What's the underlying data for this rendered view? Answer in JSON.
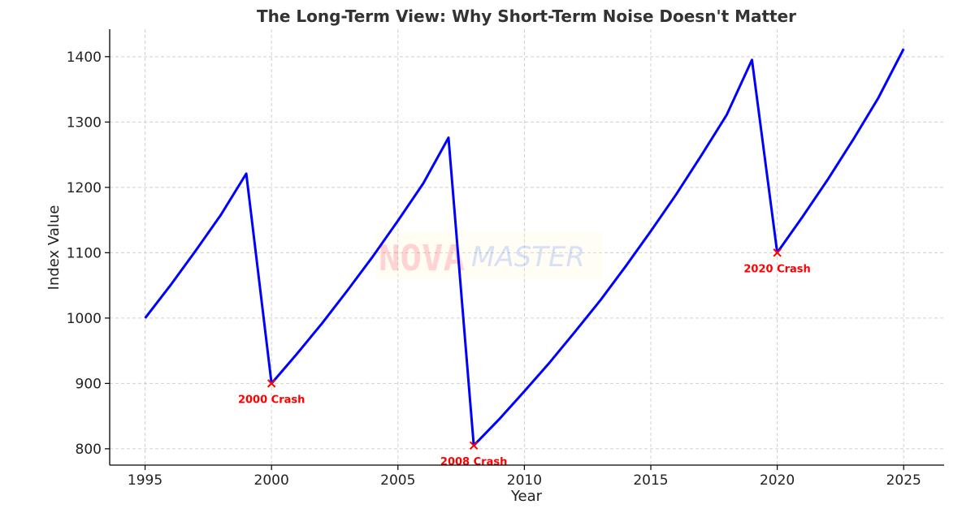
{
  "watermark": {
    "part1": "NOVA",
    "part2": "MASTER"
  },
  "chart_data": {
    "type": "line",
    "title": "The Long-Term View: Why Short-Term Noise Doesn't Matter",
    "xlabel": "Year",
    "ylabel": "Index Value",
    "xlim": [
      1993.6,
      2026.6
    ],
    "ylim": [
      775,
      1442
    ],
    "xticks": [
      1995,
      2000,
      2005,
      2010,
      2015,
      2020,
      2025
    ],
    "yticks": [
      800,
      900,
      1000,
      1100,
      1200,
      1300,
      1400
    ],
    "grid": true,
    "line_color": "#0000ff",
    "annotation_color": "#ff0000",
    "series": [
      {
        "x": [
          1995,
          1996,
          1997,
          1998,
          1999,
          2000,
          2001,
          2002,
          2003,
          2004,
          2005,
          2006,
          2007,
          2008,
          2009,
          2010,
          2011,
          2012,
          2013,
          2014,
          2015,
          2016,
          2017,
          2018,
          2019,
          2020,
          2021,
          2022,
          2023,
          2024,
          2025
        ],
        "values": [
          1000,
          1050,
          1103,
          1158,
          1221,
          900,
          945,
          992,
          1042,
          1094,
          1149,
          1206,
          1276,
          805,
          845,
          888,
          932,
          979,
          1027,
          1079,
          1133,
          1189,
          1249,
          1311,
          1395,
          1100,
          1155,
          1212,
          1273,
          1337,
          1412
        ]
      }
    ],
    "annotations": [
      {
        "x": 2000,
        "y": 900,
        "label": "2000 Crash"
      },
      {
        "x": 2008,
        "y": 805,
        "label": "2008 Crash"
      },
      {
        "x": 2020,
        "y": 1100,
        "label": "2020 Crash"
      }
    ]
  }
}
